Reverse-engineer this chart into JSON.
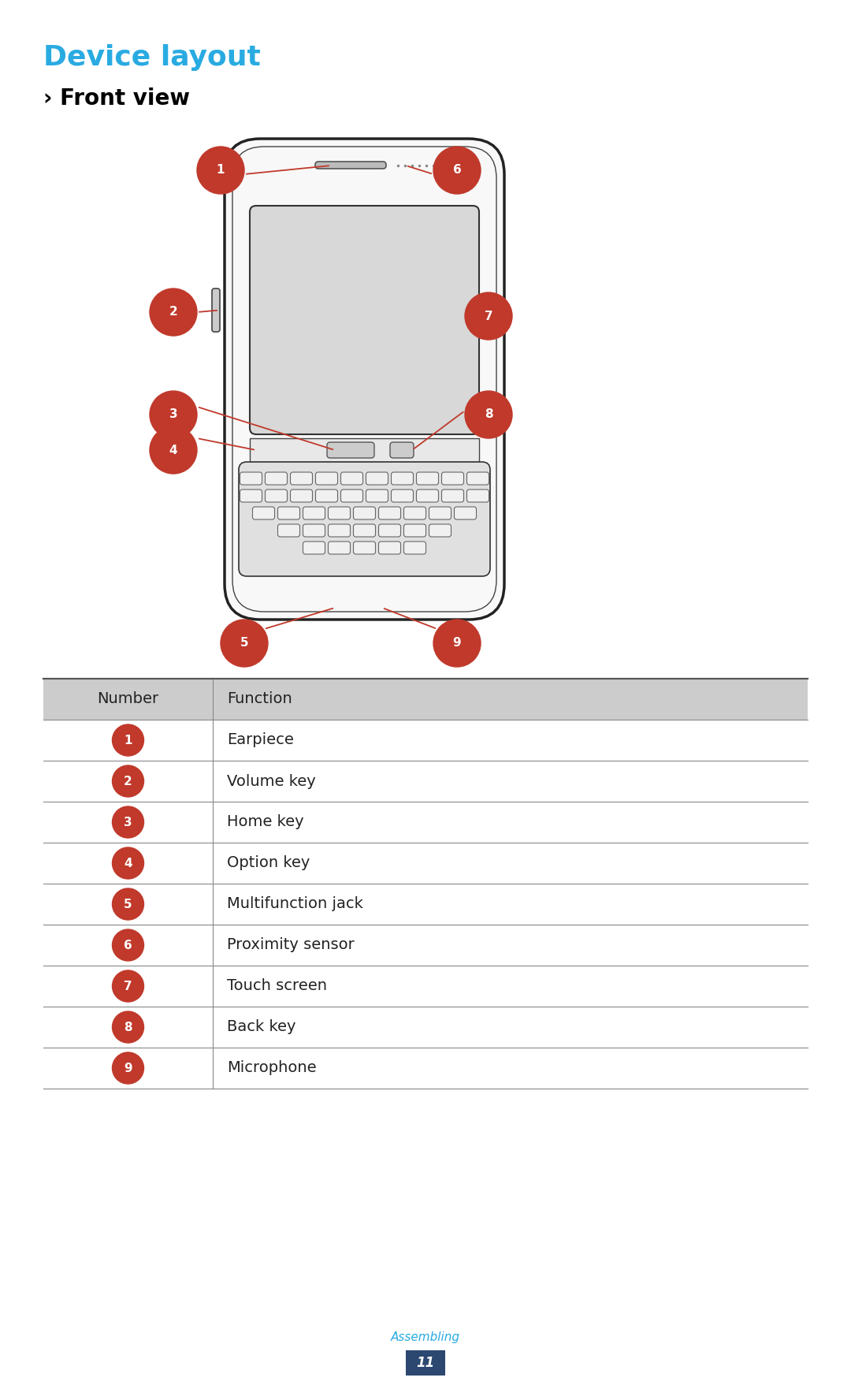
{
  "title": "Device layout",
  "subtitle": "› Front view",
  "title_color": "#29ABE2",
  "subtitle_color": "#000000",
  "badge_color": "#C0392B",
  "badge_text_color": "#FFFFFF",
  "line_color": "#333333",
  "arrow_color": "#C0392B",
  "table_header_bg": "#CCCCCC",
  "table_row_bg": "#FFFFFF",
  "table_border_color": "#888888",
  "footer_text": "Assembling",
  "footer_number": "11",
  "footer_number_bg": "#2C4770",
  "footer_text_color": "#29ABE2",
  "footer_number_color": "#FFFFFF",
  "table_data": [
    [
      "Number",
      "Function"
    ],
    [
      "1",
      "Earpiece"
    ],
    [
      "2",
      "Volume key"
    ],
    [
      "3",
      "Home key"
    ],
    [
      "4",
      "Option key"
    ],
    [
      "5",
      "Multifunction jack"
    ],
    [
      "6",
      "Proximity sensor"
    ],
    [
      "7",
      "Touch screen"
    ],
    [
      "8",
      "Back key"
    ],
    [
      "9",
      "Microphone"
    ]
  ]
}
